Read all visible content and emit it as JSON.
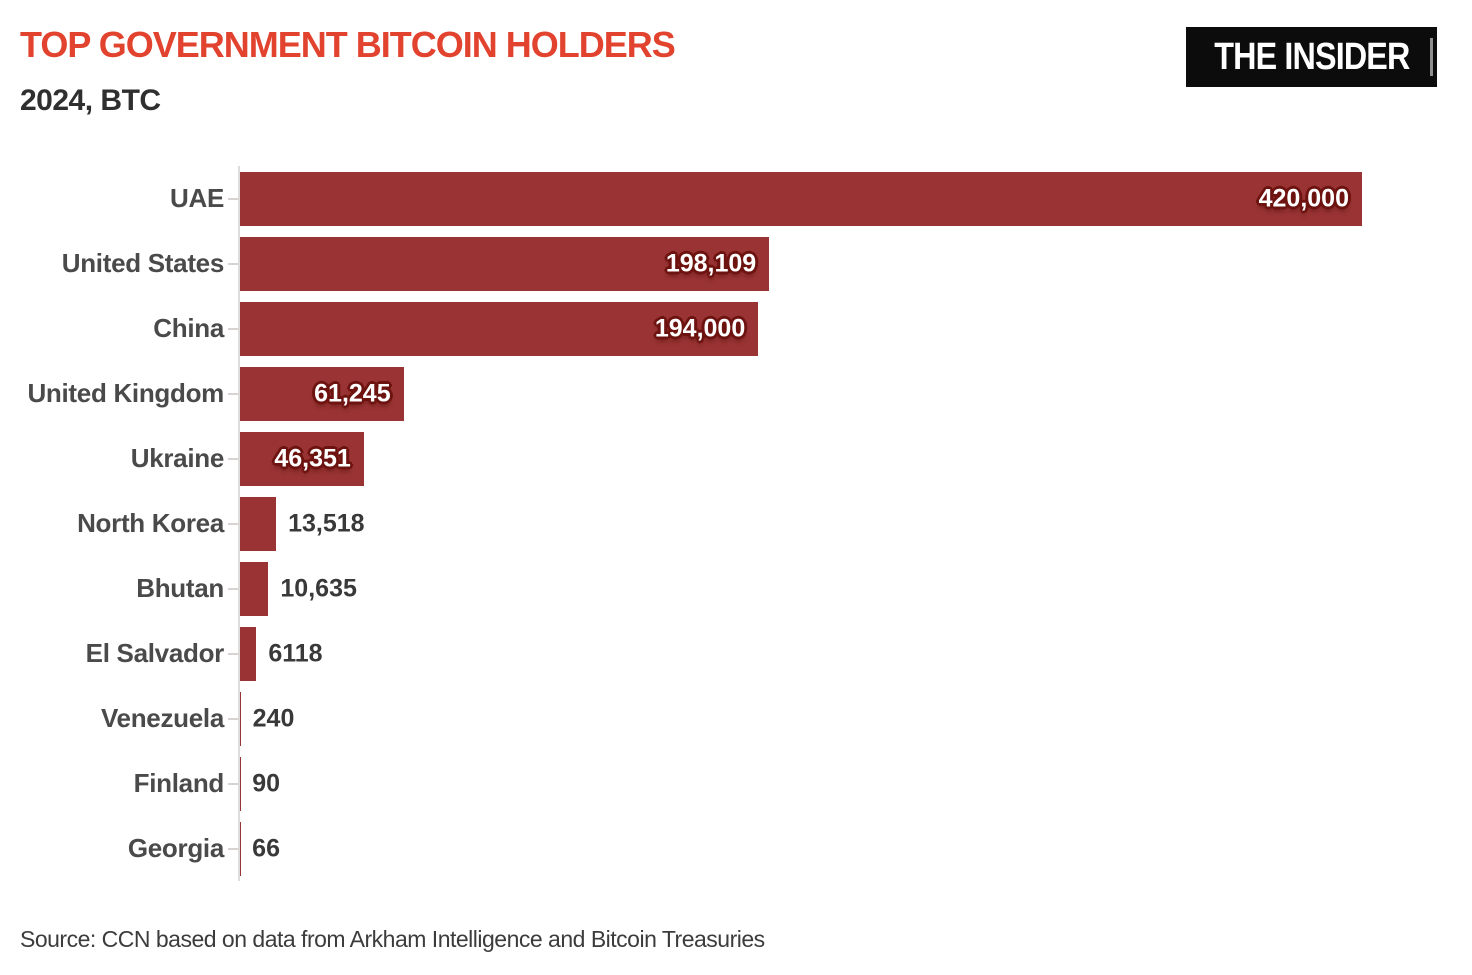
{
  "header": {
    "title": "TOP GOVERNMENT BITCOIN HOLDERS",
    "subtitle": "2024, BTC",
    "logo_text": "THE INSIDER"
  },
  "chart_data": {
    "type": "bar",
    "orientation": "horizontal",
    "title": "TOP GOVERNMENT BITCOIN HOLDERS",
    "subtitle": "2024, BTC",
    "unit": "BTC",
    "year": "2024",
    "categories": [
      "UAE",
      "United States",
      "China",
      "United Kingdom",
      "Ukraine",
      "North Korea",
      "Bhutan",
      "El Salvador",
      "Venezuela",
      "Finland",
      "Georgia"
    ],
    "values": [
      420000,
      198109,
      194000,
      61245,
      46351,
      13518,
      10635,
      6118,
      240,
      90,
      66
    ],
    "value_labels": [
      "420,000",
      "198,109",
      "194,000",
      "61,245",
      "46,351",
      "13,518",
      "10,635",
      "6118",
      "240",
      "90",
      "66"
    ],
    "xlim": [
      0,
      420000
    ],
    "grid": false,
    "legend": false,
    "bar_color": "#9a3434",
    "value_label_inside_color": "#ffffff",
    "value_label_outside_color": "#393939",
    "title_color": "#e2432f"
  },
  "footer": {
    "source": "Source: CCN based on data from Arkham Intelligence and Bitcoin Treasuries"
  }
}
